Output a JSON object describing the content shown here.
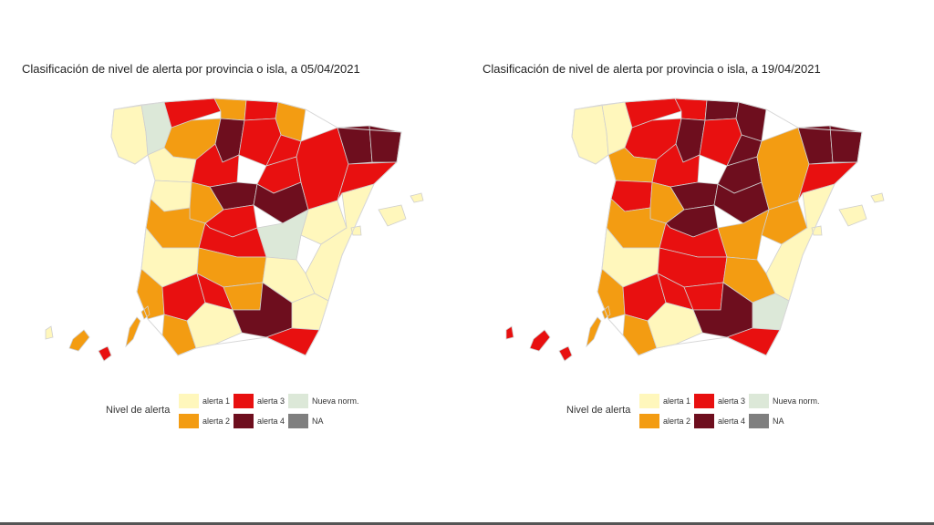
{
  "colors": {
    "alerta1": "#FFF7BC",
    "alerta2": "#F39C12",
    "alerta3": "#E81010",
    "alerta4": "#6E0E1E",
    "nueva": "#DCE8D8",
    "na": "#7F7F7F"
  },
  "legend": {
    "title": "Nivel de alerta",
    "items": [
      {
        "key": "alerta1",
        "label": "alerta 1"
      },
      {
        "key": "alerta2",
        "label": "alerta 2"
      },
      {
        "key": "alerta3",
        "label": "alerta 3"
      },
      {
        "key": "alerta4",
        "label": "alerta 4"
      },
      {
        "key": "nueva",
        "label": "Nueva norm."
      },
      {
        "key": "na",
        "label": "NA"
      }
    ]
  },
  "maps": [
    {
      "title": "Clasificación de nivel de alerta por provincia o isla, a 05/04/2021",
      "regions": {
        "galicia_west": "alerta1",
        "galicia_east": "nueva",
        "asturias": "alerta3",
        "cantabria": "alerta2",
        "basque": "alerta3",
        "navarra": "alerta2",
        "leon": "alerta2",
        "palencia": "alerta4",
        "burgos": "alerta3",
        "zamora": "alerta1",
        "valladolid": "alerta3",
        "soria": "alerta3",
        "salamanca": "alerta1",
        "avila": "alerta2",
        "segovia": "alerta4",
        "madrid": "alerta3",
        "guadalajara": "alerta4",
        "rioja": "alerta3",
        "aragon_north": "alerta3",
        "aragon_south": "alerta1",
        "catalonia_west": "alerta4",
        "catalonia_east": "alerta4",
        "tarragona": "alerta3",
        "cuenca": "nueva",
        "valencia": "alerta1",
        "caceres": "alerta2",
        "badajoz": "alerta1",
        "toledo": "alerta3",
        "ciudad_real": "alerta2",
        "albacete": "alerta1",
        "murcia": "alerta1",
        "huelva": "alerta2",
        "sevilla": "alerta3",
        "cordoba": "alerta3",
        "jaen": "alerta2",
        "granada": "alerta4",
        "almeria": "alerta3",
        "cadiz": "alerta2",
        "malaga": "alerta1",
        "balearics": "alerta1",
        "canary_west": "alerta1",
        "canary_mid": "alerta2",
        "canary_east": "alerta2",
        "canary_red": "alerta3"
      }
    },
    {
      "title": "Clasificación de nivel de alerta por provincia o isla, a 19/04/2021",
      "regions": {
        "galicia_west": "alerta1",
        "galicia_east": "alerta1",
        "asturias": "alerta3",
        "cantabria": "alerta3",
        "basque": "alerta4",
        "navarra": "alerta4",
        "leon": "alerta3",
        "palencia": "alerta4",
        "burgos": "alerta3",
        "zamora": "alerta2",
        "valladolid": "alerta3",
        "soria": "alerta4",
        "salamanca": "alerta3",
        "avila": "alerta2",
        "segovia": "alerta4",
        "madrid": "alerta4",
        "guadalajara": "alerta4",
        "rioja": "alerta4",
        "aragon_north": "alerta2",
        "aragon_south": "alerta2",
        "catalonia_west": "alerta4",
        "catalonia_east": "alerta4",
        "tarragona": "alerta3",
        "cuenca": "alerta2",
        "valencia": "alerta1",
        "caceres": "alerta2",
        "badajoz": "alerta1",
        "toledo": "alerta3",
        "ciudad_real": "alerta3",
        "albacete": "alerta2",
        "murcia": "nueva",
        "huelva": "alerta2",
        "sevilla": "alerta3",
        "cordoba": "alerta3",
        "jaen": "alerta3",
        "granada": "alerta4",
        "almeria": "alerta3",
        "cadiz": "alerta2",
        "malaga": "alerta1",
        "balearics": "alerta1",
        "canary_west": "alerta3",
        "canary_mid": "alerta3",
        "canary_east": "alerta2",
        "canary_red": "alerta3"
      }
    }
  ]
}
